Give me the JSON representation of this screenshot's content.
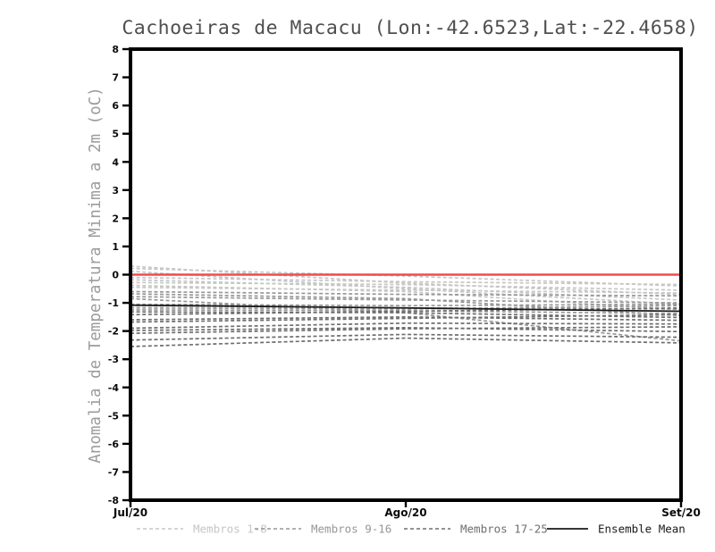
{
  "page": {
    "background": "#ffffff",
    "axis_color": "#000000",
    "tick_label_color": "#0a0a0a",
    "title_color": "#4f4f4f",
    "ylabel_color": "#9c9c9c"
  },
  "chart_data": {
    "type": "line",
    "title": "Cachoeiras de Macacu (Lon:-42.6523,Lat:-22.4658)",
    "ylabel": "Anomalia de Temperatura Minima a 2m (oC)",
    "xlabel": "",
    "categories": [
      "Jul/20",
      "Ago/20",
      "Set/20"
    ],
    "ylim": [
      -8,
      8
    ],
    "ytick_interval": 1,
    "grid": false,
    "legend_position": "bottom",
    "zero_line": {
      "value": 0,
      "color": "#f24b4b"
    },
    "series": [
      {
        "name": "Membros 1-8",
        "color": "#c6c6c6",
        "style": "dashed",
        "members": [
          [
            0.3,
            -0.3,
            -0.7
          ],
          [
            0.22,
            -0.05,
            -0.4
          ],
          [
            0.12,
            -0.5,
            -1.05
          ],
          [
            -0.1,
            -0.25,
            -0.35
          ],
          [
            -0.18,
            -0.45,
            -0.9
          ],
          [
            -0.28,
            -0.35,
            -0.55
          ],
          [
            -0.38,
            -0.6,
            -1.25
          ],
          [
            -0.45,
            -0.55,
            -0.65
          ]
        ]
      },
      {
        "name": "Membros 9-16",
        "color": "#979797",
        "style": "dashed",
        "members": [
          [
            -0.6,
            -0.7,
            -0.75
          ],
          [
            -0.68,
            -0.85,
            -1.45
          ],
          [
            -0.78,
            -0.9,
            -1.0
          ],
          [
            -0.85,
            -1.35,
            -2.35
          ],
          [
            -1.05,
            -1.1,
            -1.05
          ],
          [
            -1.1,
            -1.18,
            -1.22
          ],
          [
            -1.18,
            -1.22,
            -1.1
          ],
          [
            -1.25,
            -1.28,
            -1.38
          ]
        ]
      },
      {
        "name": "Membros 17-25",
        "color": "#6e6e6e",
        "style": "dashed",
        "members": [
          [
            -1.32,
            -1.35,
            -1.52
          ],
          [
            -1.42,
            -1.3,
            -1.18
          ],
          [
            -1.6,
            -1.5,
            -1.62
          ],
          [
            -1.68,
            -1.55,
            -1.42
          ],
          [
            -1.9,
            -1.72,
            -1.75
          ],
          [
            -1.98,
            -1.88,
            -2.02
          ],
          [
            -2.08,
            -1.92,
            -1.85
          ],
          [
            -2.32,
            -2.12,
            -2.22
          ],
          [
            -2.55,
            -2.25,
            -2.42
          ]
        ]
      },
      {
        "name": "Ensemble Mean",
        "color": "#1a1a1a",
        "style": "solid",
        "members": [
          [
            -1.08,
            -1.18,
            -1.3
          ]
        ]
      }
    ]
  }
}
